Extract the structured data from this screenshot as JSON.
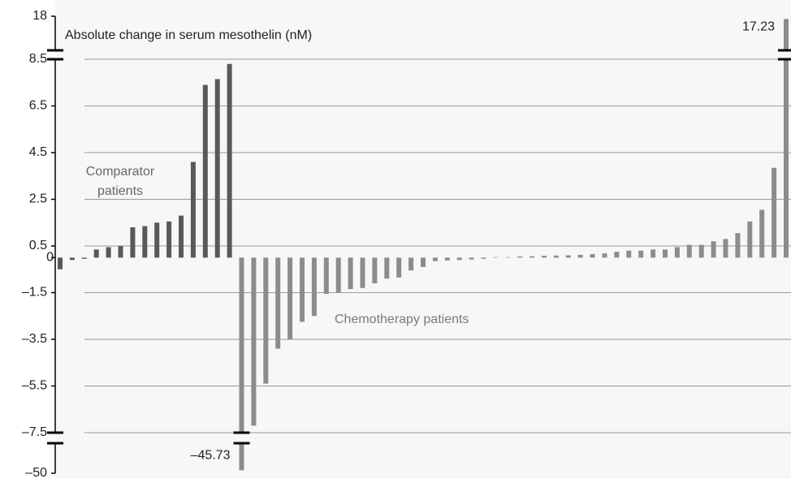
{
  "chart_data": {
    "type": "bar",
    "title": "Absolute change in serum mesothelin (nM)",
    "ylim": [
      -50,
      18
    ],
    "ybreaks": [
      -7.5,
      8.5
    ],
    "yticks": [
      {
        "value": -50,
        "label": "–50"
      },
      {
        "value": -7.5,
        "label": "–7.5"
      },
      {
        "value": -5.5,
        "label": "–5.5"
      },
      {
        "value": -3.5,
        "label": "–3.5"
      },
      {
        "value": -1.5,
        "label": "–1.5"
      },
      0,
      0.5,
      2.5,
      4.5,
      6.5,
      8.5,
      18
    ],
    "grid": true,
    "series": [
      {
        "name": "Comparator patients",
        "name_lines": [
          "Comparator",
          "patients"
        ],
        "color": "#595959",
        "values": [
          -0.5,
          -0.1,
          -0.05,
          0.35,
          0.45,
          0.5,
          1.3,
          1.35,
          1.5,
          1.55,
          1.8,
          4.1,
          7.4,
          7.65,
          8.3
        ]
      },
      {
        "name": "Chemotherapy patients",
        "color": "#8c8c8c",
        "values": [
          -45.73,
          -7.2,
          -5.4,
          -3.9,
          -3.5,
          -2.75,
          -2.5,
          -1.55,
          -1.5,
          -1.35,
          -1.3,
          -1.1,
          -0.9,
          -0.85,
          -0.55,
          -0.4,
          -0.15,
          -0.12,
          -0.1,
          -0.08,
          -0.05,
          0.02,
          0.02,
          0.05,
          0.06,
          0.08,
          0.09,
          0.1,
          0.12,
          0.15,
          0.18,
          0.25,
          0.3,
          0.3,
          0.35,
          0.35,
          0.45,
          0.55,
          0.55,
          0.7,
          0.8,
          1.05,
          1.55,
          2.05,
          3.85,
          17.23
        ],
        "value_labels": [
          "–45.73",
          null,
          null,
          null,
          null,
          null,
          null,
          null,
          null,
          null,
          null,
          null,
          null,
          null,
          null,
          null,
          null,
          null,
          null,
          null,
          null,
          null,
          null,
          null,
          null,
          null,
          null,
          null,
          null,
          null,
          null,
          null,
          null,
          null,
          null,
          null,
          null,
          null,
          null,
          null,
          null,
          null,
          null,
          null,
          null,
          "17.23"
        ]
      }
    ]
  }
}
